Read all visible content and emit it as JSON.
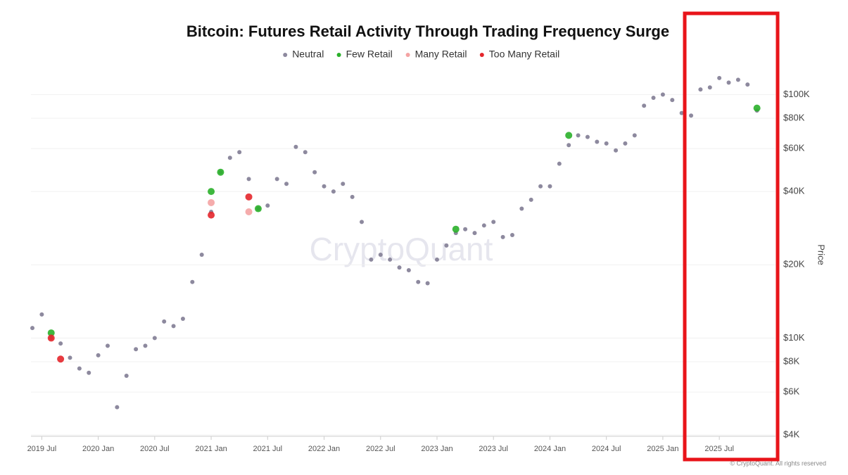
{
  "chart_data": {
    "type": "scatter",
    "title": "Bitcoin: Futures Retail Activity Through Trading Frequency Surge",
    "y_label": "Price",
    "watermark": "CryptoQuant",
    "footer": "© CryptoQuant. All rights reserved",
    "log_y": true,
    "grid": true,
    "xlim": [
      "2019-06",
      "2025-12"
    ],
    "xticks": [
      {
        "value": "2019-07",
        "label": "2019 Jul"
      },
      {
        "value": "2020-01",
        "label": "2020 Jan"
      },
      {
        "value": "2020-07",
        "label": "2020 Jul"
      },
      {
        "value": "2021-01",
        "label": "2021 Jan"
      },
      {
        "value": "2021-07",
        "label": "2021 Jul"
      },
      {
        "value": "2022-01",
        "label": "2022 Jan"
      },
      {
        "value": "2022-07",
        "label": "2022 Jul"
      },
      {
        "value": "2023-01",
        "label": "2023 Jan"
      },
      {
        "value": "2023-07",
        "label": "2023 Jul"
      },
      {
        "value": "2024-01",
        "label": "2024 Jan"
      },
      {
        "value": "2024-07",
        "label": "2024 Jul"
      },
      {
        "value": "2025-01",
        "label": "2025 Jan"
      },
      {
        "value": "2025-07",
        "label": "2025 Jul"
      }
    ],
    "ylim": [
      3950,
      130000
    ],
    "yticks": [
      {
        "value": 4000,
        "label": "$4K"
      },
      {
        "value": 6000,
        "label": "$6K"
      },
      {
        "value": 8000,
        "label": "$8K"
      },
      {
        "value": 10000,
        "label": "$10K"
      },
      {
        "value": 20000,
        "label": "$20K"
      },
      {
        "value": 40000,
        "label": "$40K"
      },
      {
        "value": 60000,
        "label": "$60K"
      },
      {
        "value": 80000,
        "label": "$80K"
      },
      {
        "value": 100000,
        "label": "$100K"
      }
    ],
    "series": [
      {
        "name": "Neutral",
        "color": "#8d899e",
        "x": [
          "2019-06",
          "2019-07",
          "2019-08",
          "2019-09",
          "2019-10",
          "2019-11",
          "2019-12",
          "2020-01",
          "2020-02",
          "2020-03",
          "2020-04",
          "2020-05",
          "2020-06",
          "2020-07",
          "2020-08",
          "2020-09",
          "2020-10",
          "2020-11",
          "2020-12",
          "2021-01",
          "2021-02",
          "2021-03",
          "2021-04",
          "2021-05",
          "2021-06",
          "2021-07",
          "2021-08",
          "2021-09",
          "2021-10",
          "2021-11",
          "2021-12",
          "2022-01",
          "2022-02",
          "2022-03",
          "2022-04",
          "2022-05",
          "2022-06",
          "2022-07",
          "2022-08",
          "2022-09",
          "2022-10",
          "2022-11",
          "2022-12",
          "2023-01",
          "2023-02",
          "2023-03",
          "2023-04",
          "2023-05",
          "2023-06",
          "2023-07",
          "2023-08",
          "2023-09",
          "2023-10",
          "2023-11",
          "2023-12",
          "2024-01",
          "2024-02",
          "2024-03",
          "2024-04",
          "2024-05",
          "2024-06",
          "2024-07",
          "2024-08",
          "2024-09",
          "2024-10",
          "2024-11",
          "2024-12",
          "2025-01",
          "2025-02",
          "2025-03",
          "2025-04",
          "2025-05",
          "2025-06",
          "2025-07",
          "2025-08",
          "2025-09",
          "2025-10",
          "2025-11"
        ],
        "values": [
          11000,
          12500,
          10000,
          9500,
          8300,
          7500,
          7200,
          8500,
          9300,
          5200,
          7000,
          9000,
          9300,
          10000,
          11700,
          11200,
          12000,
          17000,
          22000,
          33000,
          48000,
          55000,
          58000,
          45000,
          34000,
          35000,
          45000,
          43000,
          61000,
          58000,
          48000,
          42000,
          40000,
          43000,
          38000,
          30000,
          21000,
          22000,
          21000,
          19500,
          19000,
          17000,
          16800,
          21000,
          24000,
          27000,
          28000,
          27000,
          29000,
          30000,
          26000,
          26500,
          34000,
          37000,
          42000,
          42000,
          52000,
          62000,
          68000,
          67000,
          64000,
          63000,
          59000,
          63000,
          68000,
          90000,
          97000,
          100000,
          95000,
          84000,
          82000,
          105000,
          107000,
          117000,
          112000,
          115000,
          110000,
          86000
        ]
      },
      {
        "name": "Few Retail",
        "color": "#2ab02a",
        "x": [
          "2019-08",
          "2021-01",
          "2021-02",
          "2021-06",
          "2023-03",
          "2024-03",
          "2025-11"
        ],
        "values": [
          10500,
          40000,
          48000,
          34000,
          28000,
          68000,
          88000
        ]
      },
      {
        "name": "Many Retail",
        "color": "#f4a3a3",
        "x": [
          "2021-01",
          "2021-05"
        ],
        "values": [
          36000,
          33000
        ]
      },
      {
        "name": "Too Many Retail",
        "color": "#e4262b",
        "x": [
          "2019-08",
          "2019-09",
          "2021-01",
          "2021-05"
        ],
        "values": [
          10000,
          8200,
          32000,
          38000
        ]
      }
    ]
  }
}
